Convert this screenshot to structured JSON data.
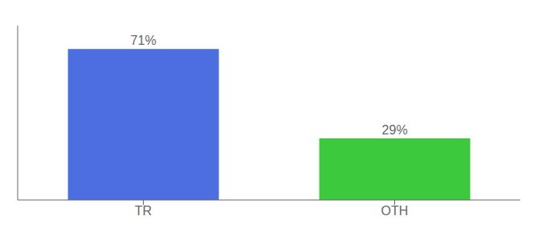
{
  "chart_data": {
    "type": "bar",
    "categories": [
      "TR",
      "OTH"
    ],
    "values": [
      71,
      29
    ],
    "value_labels": [
      "71%",
      "29%"
    ],
    "colors": [
      "#4c6ee0",
      "#3dc93d"
    ],
    "ylim": [
      0,
      82
    ],
    "data_labels": true,
    "tick_labels": "x"
  }
}
